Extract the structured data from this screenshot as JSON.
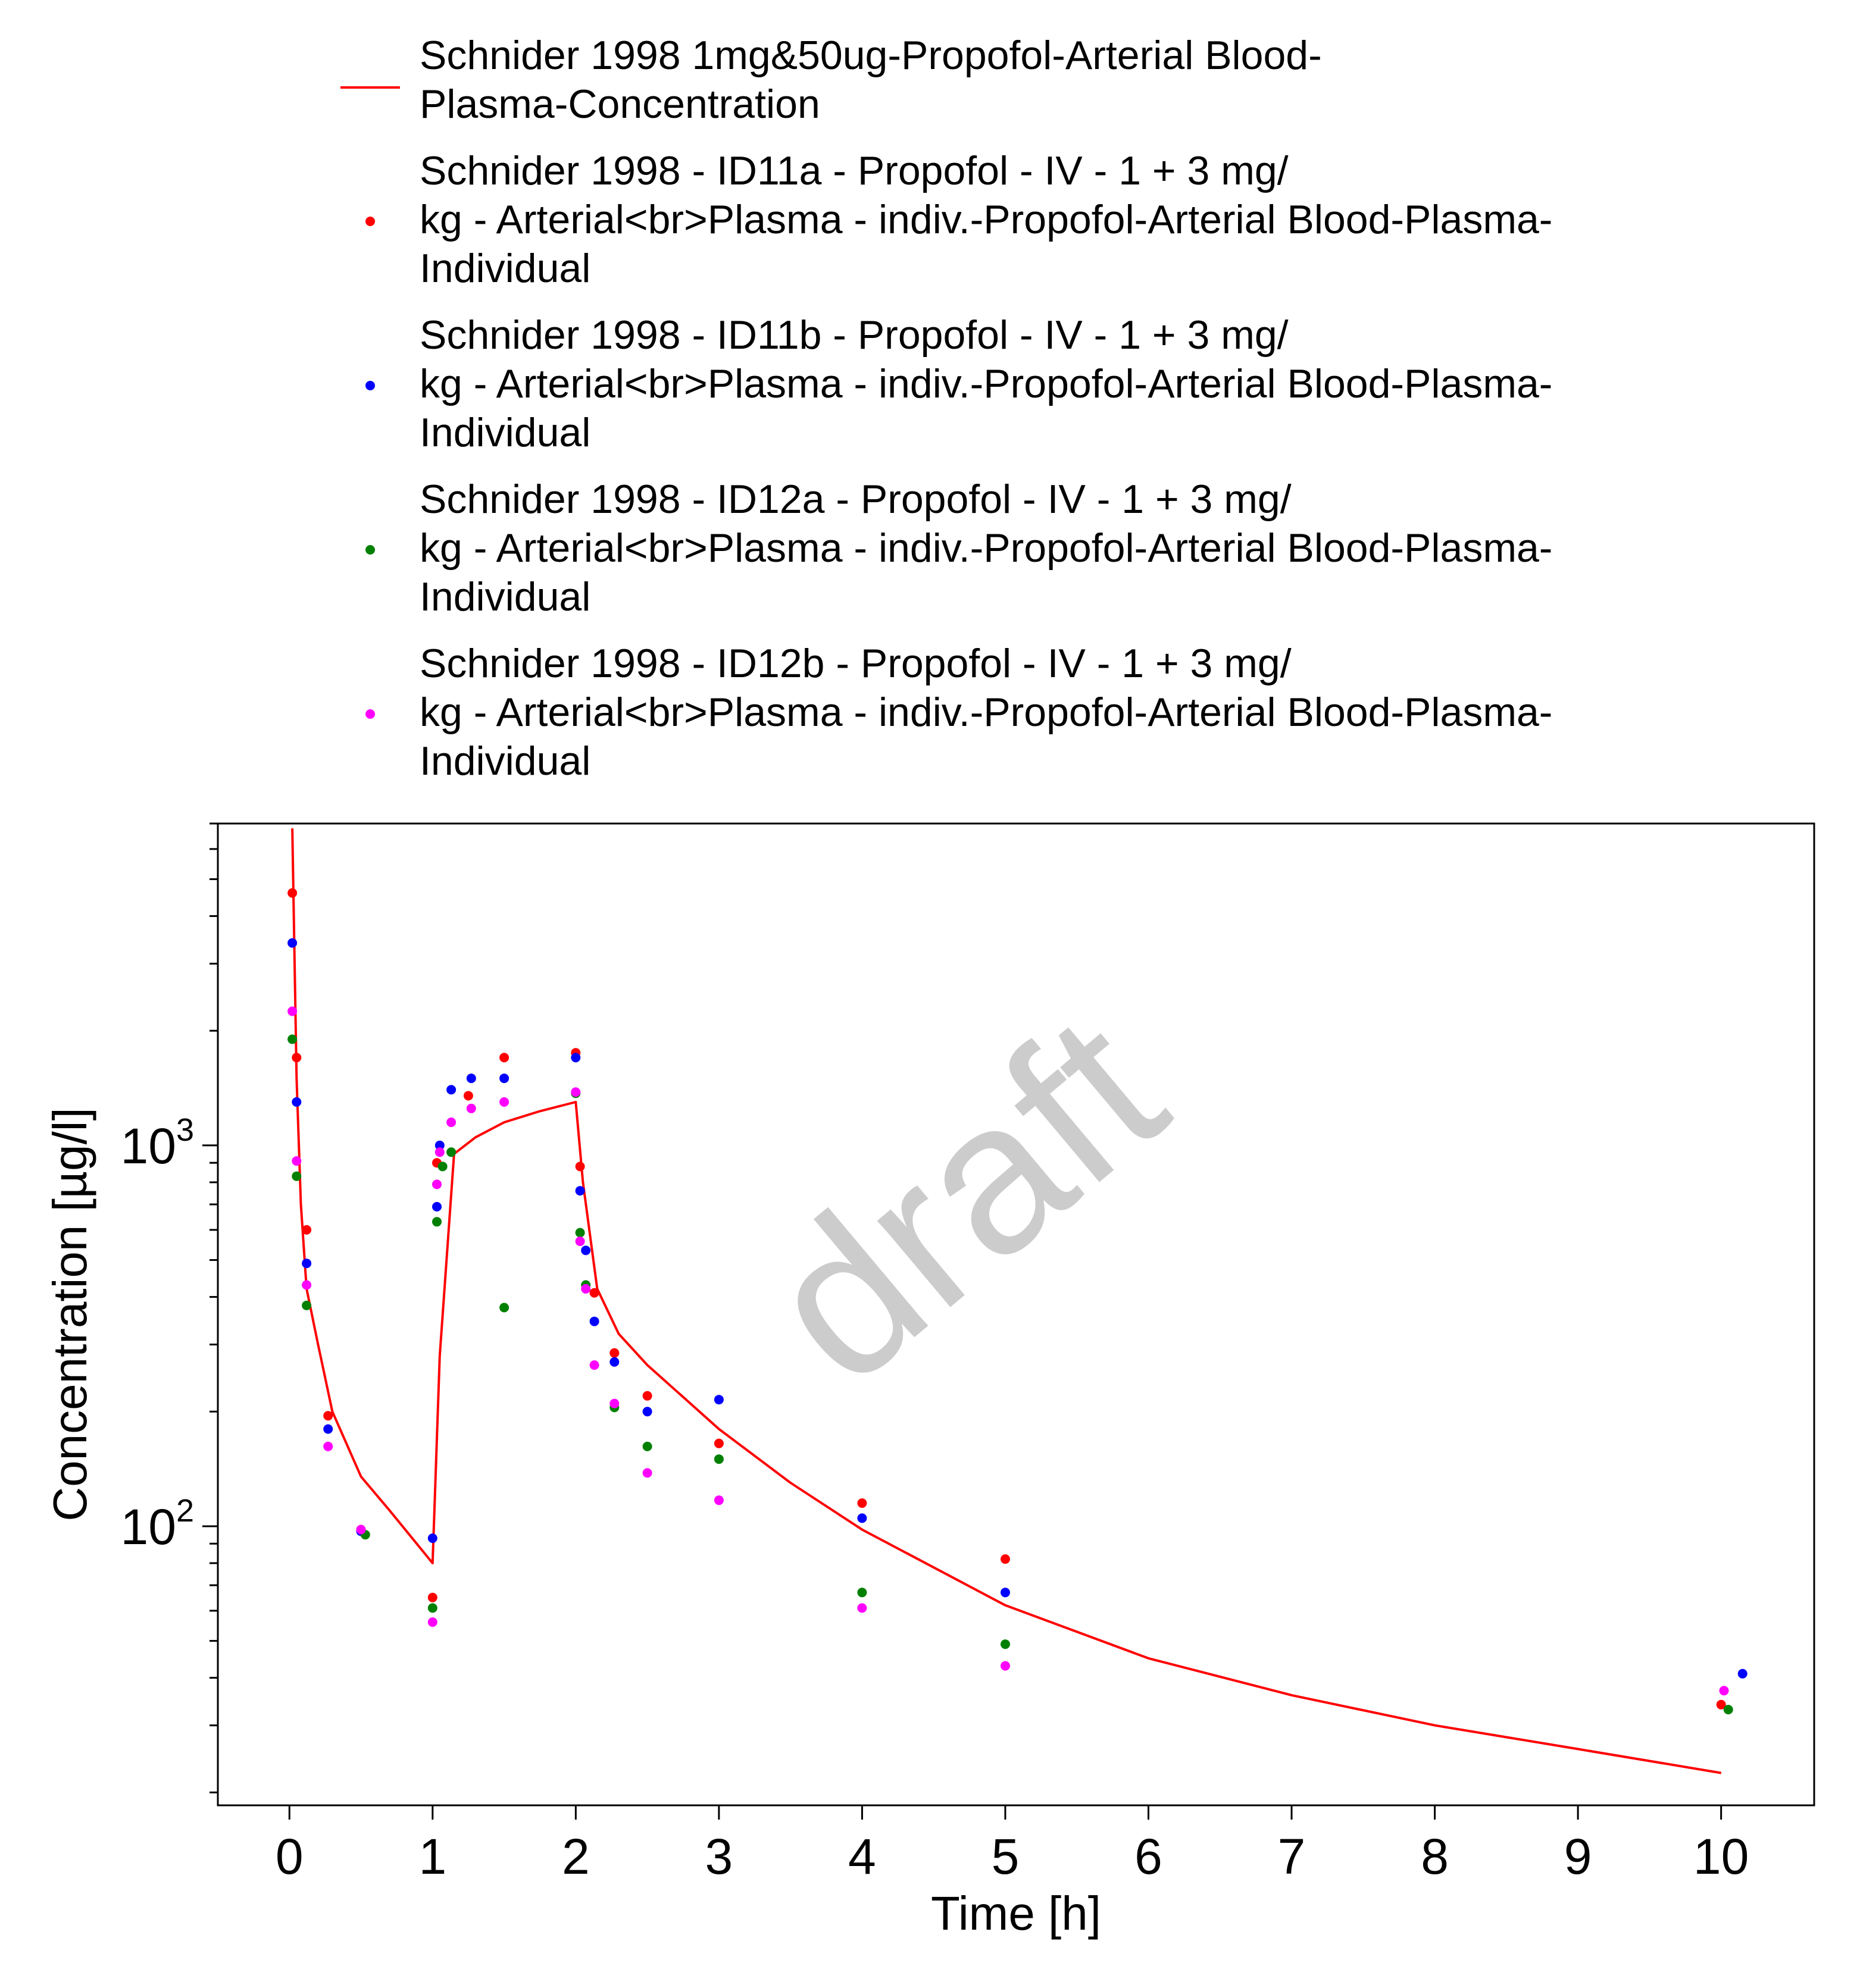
{
  "chart_data": {
    "type": "scatter",
    "xlabel": "Time [h]",
    "ylabel": "Concentration [µg/l]",
    "xlim": [
      -0.5,
      10.65
    ],
    "ylim": [
      18.5,
      7000
    ],
    "y_scale": "log",
    "x_ticks": [
      0,
      1,
      2,
      3,
      4,
      5,
      6,
      7,
      8,
      9,
      10
    ],
    "y_major_ticks": [
      {
        "base": "10",
        "exp": "2",
        "value": 100
      },
      {
        "base": "10",
        "exp": "3",
        "value": 1000
      }
    ],
    "legend_position": "top",
    "grid": false,
    "watermark": "draft",
    "series": [
      {
        "name": "Schnider 1998 1mg&50ug-Propofol-Arterial Blood-Plasma-Concentration",
        "legend_lines": [
          "Schnider 1998 1mg&50ug-Propofol-Arterial Blood-",
          "Plasma-Concentration"
        ],
        "kind": "line",
        "color": "#ff0000",
        "x": [
          0.02,
          0.05,
          0.08,
          0.12,
          0.2,
          0.3,
          0.5,
          0.7,
          1.0,
          1.05,
          1.15,
          1.3,
          1.5,
          1.75,
          2.0,
          2.05,
          2.15,
          2.3,
          2.5,
          3.0,
          3.5,
          4.0,
          5.0,
          6.0,
          7.0,
          8.0,
          9.0,
          10.0
        ],
        "y": [
          6800,
          1500,
          700,
          420,
          300,
          200,
          135,
          110,
          80,
          280,
          950,
          1050,
          1150,
          1230,
          1300,
          800,
          420,
          320,
          265,
          180,
          130,
          98,
          62,
          45,
          36,
          30,
          26,
          22.5
        ]
      },
      {
        "name": "Schnider 1998 - ID11a - Propofol - IV - 1 + 3 mg/kg - Arterial<br>Plasma - indiv.-Propofol-Arterial Blood-Plasma-Individual",
        "legend_lines": [
          "Schnider 1998 - ID11a - Propofol - IV - 1 + 3 mg/",
          "kg - Arterial<br>Plasma - indiv.-Propofol-Arterial Blood-Plasma-",
          "Individual"
        ],
        "kind": "points",
        "color": "#ff0000",
        "x": [
          0.02,
          0.05,
          0.12,
          0.27,
          0.5,
          1.0,
          1.03,
          1.25,
          1.5,
          2.0,
          2.03,
          2.13,
          2.27,
          2.5,
          3.0,
          4.0,
          5.0,
          10.0
        ],
        "y": [
          4600,
          1700,
          600,
          195,
          98,
          65,
          900,
          1350,
          1700,
          1750,
          880,
          410,
          285,
          220,
          165,
          115,
          82,
          34
        ]
      },
      {
        "name": "Schnider 1998 - ID11b - Propofol - IV - 1 + 3 mg/kg - Arterial<br>Plasma - indiv.-Propofol-Arterial Blood-Plasma-Individual",
        "legend_lines": [
          "Schnider 1998 - ID11b - Propofol - IV - 1 + 3 mg/",
          "kg - Arterial<br>Plasma - indiv.-Propofol-Arterial Blood-Plasma-",
          "Individual"
        ],
        "kind": "points",
        "color": "#0000ff",
        "x": [
          0.02,
          0.05,
          0.12,
          0.27,
          0.5,
          1.0,
          1.03,
          1.05,
          1.13,
          1.27,
          1.5,
          2.0,
          2.03,
          2.07,
          2.13,
          2.27,
          2.5,
          3.0,
          4.0,
          5.0,
          10.15
        ],
        "y": [
          3400,
          1300,
          490,
          180,
          97,
          93,
          690,
          1000,
          1400,
          1500,
          1500,
          1700,
          760,
          530,
          345,
          270,
          200,
          215,
          105,
          67,
          41
        ]
      },
      {
        "name": "Schnider 1998 - ID12a - Propofol - IV - 1 + 3 mg/kg - Arterial<br>Plasma - indiv.-Propofol-Arterial Blood-Plasma-Individual",
        "legend_lines": [
          "Schnider 1998 - ID12a - Propofol - IV - 1 + 3 mg/",
          "kg - Arterial<br>Plasma - indiv.-Propofol-Arterial Blood-Plasma-",
          "Individual"
        ],
        "kind": "points",
        "color": "#008000",
        "x": [
          0.02,
          0.05,
          0.12,
          0.53,
          1.0,
          1.03,
          1.07,
          1.13,
          1.5,
          2.0,
          2.03,
          2.07,
          2.27,
          2.5,
          3.0,
          4.0,
          5.0,
          10.05
        ],
        "y": [
          1900,
          830,
          380,
          95,
          61,
          630,
          880,
          960,
          375,
          1370,
          590,
          430,
          205,
          162,
          150,
          67,
          49,
          33
        ]
      },
      {
        "name": "Schnider 1998 - ID12b - Propofol - IV - 1 + 3 mg/kg - Arterial<br>Plasma - indiv.-Propofol-Arterial Blood-Plasma-Individual",
        "legend_lines": [
          "Schnider 1998 - ID12b - Propofol - IV - 1 + 3 mg/",
          "kg - Arterial<br>Plasma - indiv.-Propofol-Arterial Blood-Plasma-",
          "Individual"
        ],
        "kind": "points",
        "color": "#ff00ff",
        "x": [
          0.02,
          0.05,
          0.12,
          0.27,
          0.5,
          1.0,
          1.03,
          1.05,
          1.13,
          1.27,
          1.5,
          2.0,
          2.03,
          2.07,
          2.13,
          2.27,
          2.5,
          3.0,
          4.0,
          5.0,
          10.02
        ],
        "y": [
          2250,
          910,
          430,
          162,
          98,
          56,
          790,
          960,
          1150,
          1250,
          1300,
          1380,
          560,
          420,
          265,
          210,
          138,
          117,
          61,
          43,
          37
        ]
      }
    ]
  }
}
